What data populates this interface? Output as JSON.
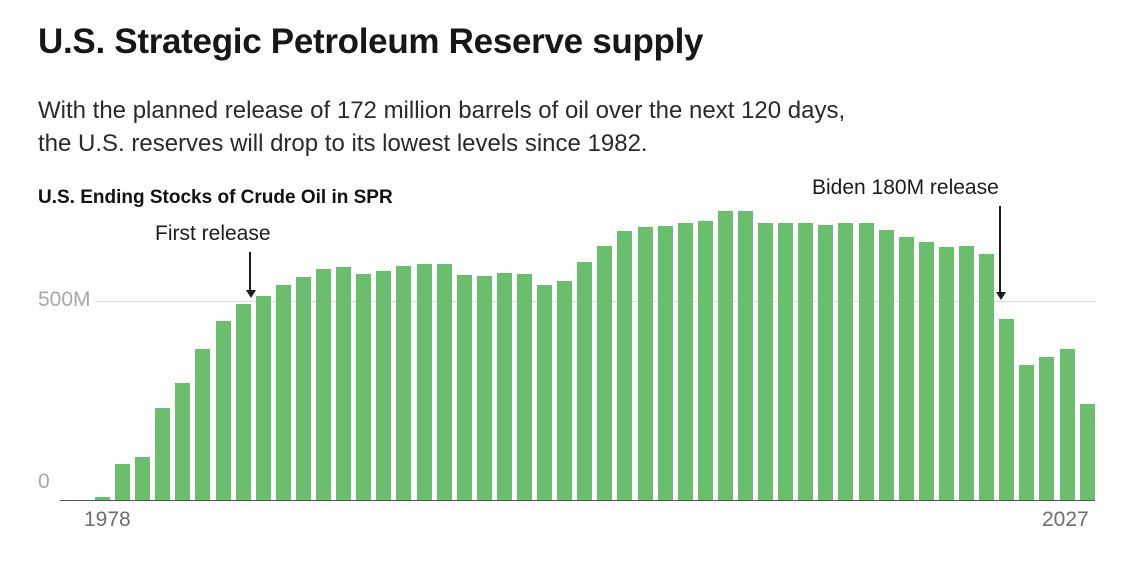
{
  "header": {
    "title": "U.S. Strategic Petroleum Reserve supply",
    "subtitle_line1": "With the planned release of 172 million barrels of oil over the next 120 days,",
    "subtitle_line2": "the U.S. reserves will drop to its lowest levels since 1982."
  },
  "colors": {
    "bar_green": "#6cbe6f",
    "gridline_gray": "#dcdcdc",
    "axis_gray": "#555555",
    "ytick_gray": "#a9a9a9",
    "xtick_gray": "#6e6e6e",
    "text_dark": "#1c1c1c"
  },
  "chart_data": {
    "type": "bar",
    "title": "U.S. Ending Stocks of Crude Oil in SPR",
    "y_unit": "million barrels",
    "ylim": [
      0,
      760
    ],
    "grid": "single horizontal gridline at 500M",
    "legend": false,
    "ytick_labels": [
      "500M",
      "0"
    ],
    "yticks": [
      {
        "value": 500,
        "label": "500M"
      },
      {
        "value": 0,
        "label": "0"
      }
    ],
    "xtick_labels": [
      "1978",
      "2027"
    ],
    "annotations": [
      {
        "label": "First release",
        "target_year": 1985
      },
      {
        "label": "Biden 180M release",
        "target_year": 2023
      }
    ],
    "years": [
      1978,
      1979,
      1980,
      1981,
      1982,
      1983,
      1984,
      1985,
      1986,
      1987,
      1988,
      1989,
      1990,
      1991,
      1992,
      1993,
      1994,
      1995,
      1996,
      1997,
      1998,
      1999,
      2000,
      2001,
      2002,
      2003,
      2004,
      2005,
      2006,
      2007,
      2008,
      2009,
      2010,
      2011,
      2012,
      2013,
      2014,
      2015,
      2016,
      2017,
      2018,
      2019,
      2020,
      2021,
      2022,
      2023,
      2024,
      2025,
      2026,
      2027
    ],
    "values": [
      7,
      91,
      108,
      230,
      294,
      379,
      451,
      493,
      512,
      541,
      560,
      580,
      586,
      569,
      575,
      587,
      592,
      592,
      566,
      563,
      571,
      567,
      541,
      550,
      599,
      638,
      676,
      685,
      689,
      697,
      702,
      727,
      727,
      696,
      695,
      696,
      691,
      695,
      695,
      679,
      662,
      649,
      635,
      638,
      617,
      455,
      340,
      360,
      380,
      240
    ]
  }
}
